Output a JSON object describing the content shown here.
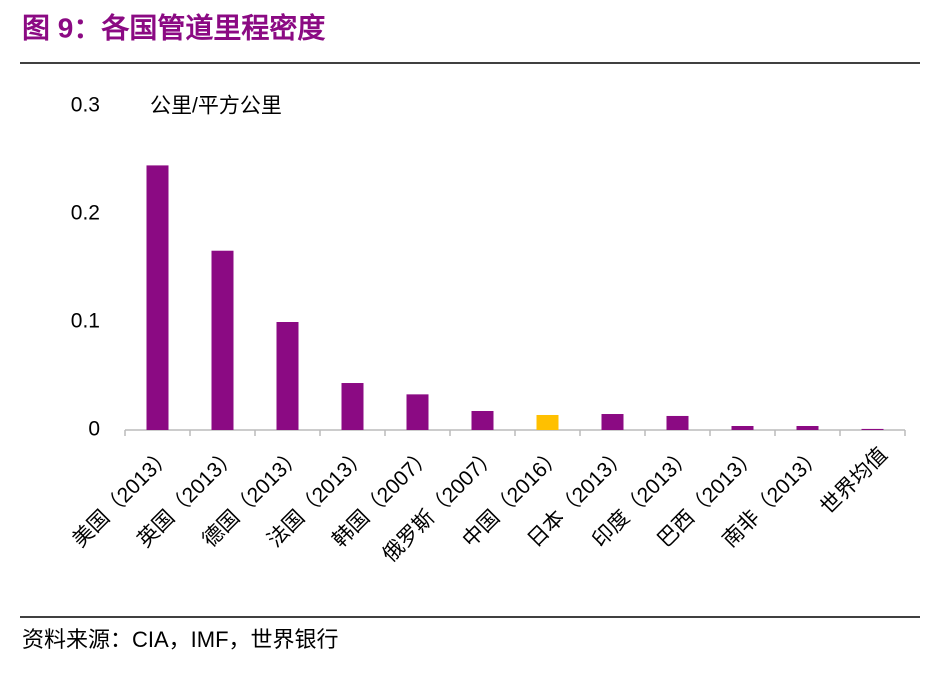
{
  "chart_data": {
    "type": "bar",
    "title": "图 9：各国管道里程密度",
    "unit_label": "公里/平方公里",
    "source": "资料来源：CIA，IMF，世界银行",
    "categories": [
      "美国（2013）",
      "英国（2013）",
      "德国（2013）",
      "法国（2013）",
      "韩国（2007）",
      "俄罗斯（2007）",
      "中国（2016）",
      "日本（2013）",
      "印度（2013）",
      "巴西（2013）",
      "南非（2013）",
      "世界均值"
    ],
    "values": [
      0.245,
      0.166,
      0.1,
      0.0435,
      0.033,
      0.0176,
      0.0139,
      0.0148,
      0.013,
      0.0037,
      0.0037,
      0.001
    ],
    "colors": [
      "#8b0a83",
      "#8b0a83",
      "#8b0a83",
      "#8b0a83",
      "#8b0a83",
      "#8b0a83",
      "#ffc000",
      "#8b0a83",
      "#8b0a83",
      "#8b0a83",
      "#8b0a83",
      "#8b0a83"
    ],
    "ylim": [
      0,
      0.3
    ],
    "yticks": [
      0,
      0.1,
      0.2,
      0.3
    ],
    "grid": false
  }
}
